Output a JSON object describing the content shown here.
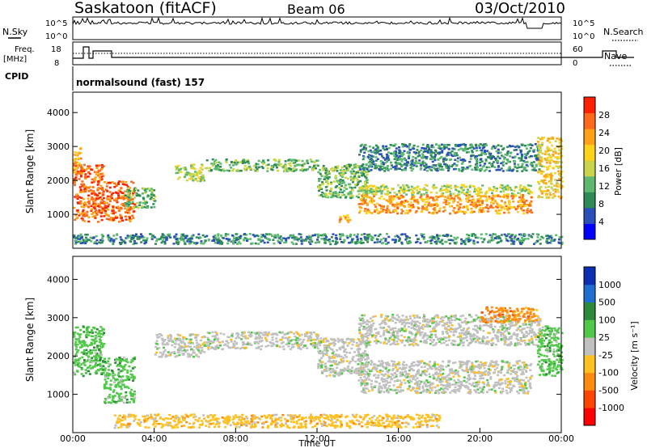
{
  "header": {
    "station": "Saskatoon (fitACF)",
    "beam": "Beam 06",
    "date": "03/Oct/2010"
  },
  "status_panels": {
    "nsky_label": "N.Sky",
    "nsky_ticks": [
      "10^5",
      "10^0"
    ],
    "nsearch_label": "N.Search",
    "nsearch_ticks": [
      "10^5",
      "10^0"
    ],
    "freq_label": "Freq.",
    "freq_unit": "[MHz]",
    "freq_ticks": [
      "18",
      "8"
    ],
    "nave_label": "Nave",
    "nave_ticks": [
      "60",
      "0"
    ],
    "cpid_label": "CPID",
    "cpid_value": "normalsound (fast) 157"
  },
  "colors": {
    "power_scale": [
      "#0000ff",
      "#2a4fb8",
      "#2e8b57",
      "#5fb870",
      "#c8d44a",
      "#ffd21a",
      "#ffa21a",
      "#ff6a1a",
      "#ff2000"
    ],
    "velocity_scale": [
      "#0b2fb0",
      "#1e6fd0",
      "#2d8a3a",
      "#52c84a",
      "#c0c0c0",
      "#ffc020",
      "#ff8a10",
      "#ff4500",
      "#ff0000"
    ]
  },
  "chart_data": [
    {
      "type": "heatmap",
      "panel": "power",
      "ylabel": "Slant Range [km]",
      "ylim": [
        0,
        4600
      ],
      "yticks": [
        "1000",
        "2000",
        "3000",
        "4000"
      ],
      "colorbar_label": "Power [dB]",
      "colorbar_ticks": [
        "4",
        "8",
        "12",
        "16",
        "20",
        "24",
        "28"
      ],
      "colorbar_range": [
        0,
        32
      ],
      "bands": [
        {
          "t_start": 0.0,
          "t_end": 1.5,
          "r_min": 800,
          "r_max": 2500,
          "level": 28
        },
        {
          "t_start": 0.0,
          "t_end": 0.4,
          "r_min": 2200,
          "r_max": 3000,
          "level": 22
        },
        {
          "t_start": 1.5,
          "t_end": 3.0,
          "r_min": 800,
          "r_max": 2000,
          "level": 26
        },
        {
          "t_start": 2.5,
          "t_end": 4.0,
          "r_min": 1200,
          "r_max": 1800,
          "level": 12
        },
        {
          "t_start": 5.0,
          "t_end": 6.5,
          "r_min": 2000,
          "r_max": 2500,
          "level": 14
        },
        {
          "t_start": 6.5,
          "t_end": 12.0,
          "r_min": 2300,
          "r_max": 2650,
          "level": 12
        },
        {
          "t_start": 12.0,
          "t_end": 14.5,
          "r_min": 1500,
          "r_max": 2500,
          "level": 12
        },
        {
          "t_start": 13.0,
          "t_end": 13.6,
          "r_min": 800,
          "r_max": 1000,
          "level": 22
        },
        {
          "t_start": 14.0,
          "t_end": 22.5,
          "r_min": 1050,
          "r_max": 1600,
          "level": 24
        },
        {
          "t_start": 14.0,
          "t_end": 22.5,
          "r_min": 1600,
          "r_max": 1900,
          "level": 14
        },
        {
          "t_start": 14.0,
          "t_end": 23.0,
          "r_min": 2300,
          "r_max": 3100,
          "level": 6
        },
        {
          "t_start": 22.8,
          "t_end": 24.0,
          "r_min": 1500,
          "r_max": 3300,
          "level": 20
        },
        {
          "t_start": 0.0,
          "t_end": 24.0,
          "r_min": 150,
          "r_max": 450,
          "level": 8
        }
      ]
    },
    {
      "type": "heatmap",
      "panel": "velocity",
      "ylabel": "Slant Range [km]",
      "xlabel": "Time UT",
      "ylim": [
        0,
        4600
      ],
      "yticks": [
        "1000",
        "2000",
        "3000",
        "4000"
      ],
      "xlim": [
        0,
        24
      ],
      "xticks": [
        "00:00",
        "04:00",
        "08:00",
        "12:00",
        "16:00",
        "20:00",
        "00:00"
      ],
      "colorbar_label": "Velocity [m s⁻¹]",
      "colorbar_ticks": [
        "1000",
        "500",
        "100",
        "25",
        "-25",
        "-100",
        "-500",
        "-1000"
      ],
      "bands": [
        {
          "t_start": 0.0,
          "t_end": 1.5,
          "r_min": 1500,
          "r_max": 2800,
          "level": 3
        },
        {
          "t_start": 1.5,
          "t_end": 3.0,
          "r_min": 800,
          "r_max": 2000,
          "level": 3
        },
        {
          "t_start": 4.0,
          "t_end": 6.5,
          "r_min": 2000,
          "r_max": 2600,
          "level": 4
        },
        {
          "t_start": 6.5,
          "t_end": 12.0,
          "r_min": 2200,
          "r_max": 2650,
          "level": 4
        },
        {
          "t_start": 12.0,
          "t_end": 14.5,
          "r_min": 1500,
          "r_max": 2500,
          "level": 4
        },
        {
          "t_start": 14.0,
          "t_end": 22.5,
          "r_min": 1050,
          "r_max": 1900,
          "level": 4
        },
        {
          "t_start": 14.0,
          "t_end": 23.0,
          "r_min": 2300,
          "r_max": 3100,
          "level": 4
        },
        {
          "t_start": 20.0,
          "t_end": 22.8,
          "r_min": 2900,
          "r_max": 3300,
          "level": 6
        },
        {
          "t_start": 22.8,
          "t_end": 24.0,
          "r_min": 1500,
          "r_max": 2800,
          "level": 3
        },
        {
          "t_start": 2.0,
          "t_end": 18.0,
          "r_min": 150,
          "r_max": 500,
          "level": 5
        }
      ]
    }
  ]
}
